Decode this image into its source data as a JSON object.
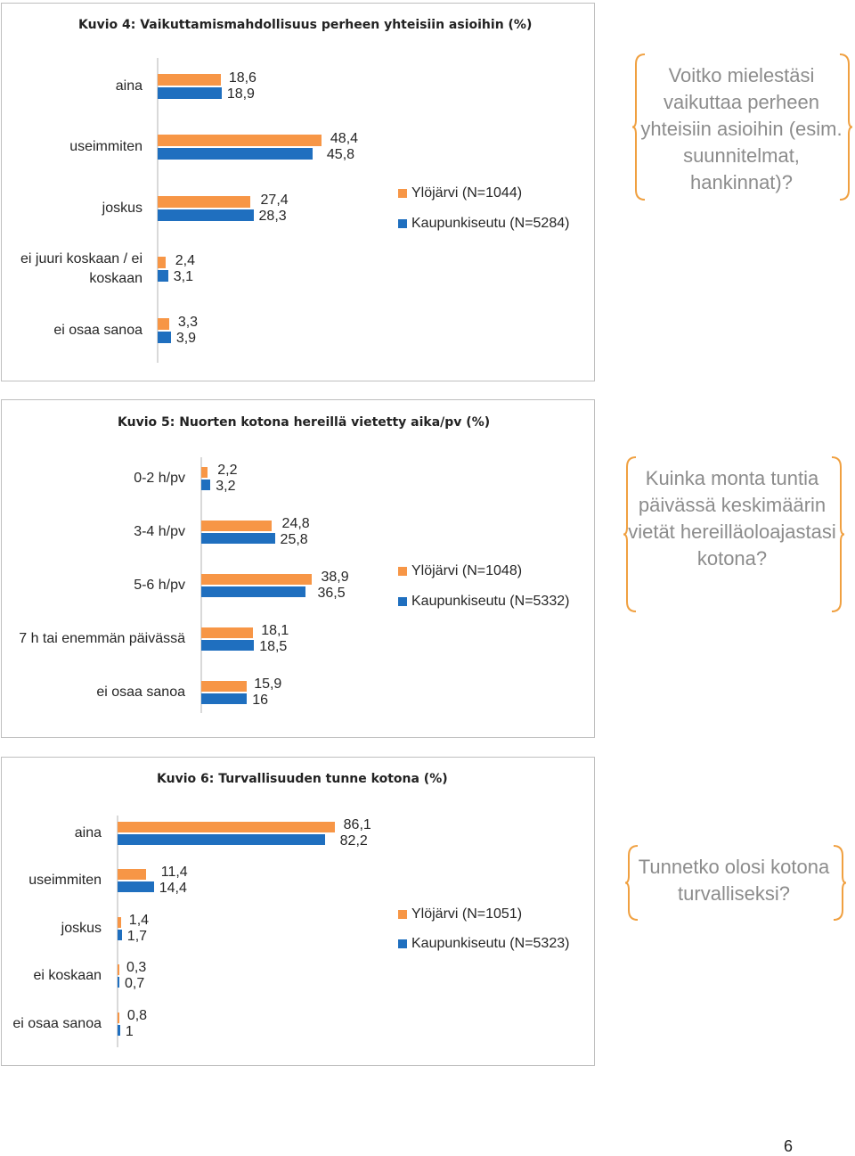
{
  "colors": {
    "ylojarvi": "#f79646",
    "kaupunkiseutu": "#1f6fbf",
    "question": "#8c8c8c",
    "brace": "#f0a040"
  },
  "chart_data": [
    {
      "type": "bar",
      "orientation": "horizontal",
      "title": "Kuvio 4: Vaikuttamismahdollisuus perheen yhteisiin asioihin (%)",
      "categories": [
        "aina",
        "useimmiten",
        "joskus",
        "ei juuri koskaan / ei koskaan",
        "ei osaa sanoa"
      ],
      "series": [
        {
          "name": "Ylöjärvi (N=1044)",
          "values": [
            18.6,
            48.4,
            27.4,
            2.4,
            3.3
          ],
          "labels": [
            "18,6",
            "48,4",
            "27,4",
            "2,4",
            "3,3"
          ]
        },
        {
          "name": "Kaupunkiseutu (N=5284)",
          "values": [
            18.9,
            45.8,
            28.3,
            3.1,
            3.9
          ],
          "labels": [
            "18,9",
            "45,8",
            "28,3",
            "3,1",
            "3,9"
          ]
        }
      ],
      "question": "Voitko mielestäsi vaikuttaa perheen yhteisiin asioihin (esim. suunnitelmat, hankinnat)?"
    },
    {
      "type": "bar",
      "orientation": "horizontal",
      "title": "Kuvio 5: Nuorten kotona hereillä vietetty aika/pv (%)",
      "categories": [
        "0-2 h/pv",
        "3-4 h/pv",
        "5-6 h/pv",
        "7 h tai enemmän päivässä",
        "ei osaa sanoa"
      ],
      "series": [
        {
          "name": "Ylöjärvi (N=1048)",
          "values": [
            2.2,
            24.8,
            38.9,
            18.1,
            15.9
          ],
          "labels": [
            "2,2",
            "24,8",
            "38,9",
            "18,1",
            "15,9"
          ]
        },
        {
          "name": "Kaupunkiseutu (N=5332)",
          "values": [
            3.2,
            25.8,
            36.5,
            18.5,
            16
          ],
          "labels": [
            "3,2",
            "25,8",
            "36,5",
            "18,5",
            "16"
          ]
        }
      ],
      "question": "Kuinka monta tuntia päivässä keskimäärin vietät hereilläoloajastasi kotona?"
    },
    {
      "type": "bar",
      "orientation": "horizontal",
      "title": "Kuvio 6: Turvallisuuden tunne kotona (%)",
      "categories": [
        "aina",
        "useimmiten",
        "joskus",
        "ei koskaan",
        "ei osaa sanoa"
      ],
      "series": [
        {
          "name": "Ylöjärvi (N=1051)",
          "values": [
            86.1,
            11.4,
            1.4,
            0.3,
            0.8
          ],
          "labels": [
            "86,1",
            "11,4",
            "1,4",
            "0,3",
            "0,8"
          ]
        },
        {
          "name": "Kaupunkiseutu (N=5323)",
          "values": [
            82.2,
            14.4,
            1.7,
            0.7,
            1
          ],
          "labels": [
            "82,2",
            "14,4",
            "1,7",
            "0,7",
            "1"
          ]
        }
      ],
      "question": "Tunnetko olosi kotona turvalliseksi?"
    }
  ],
  "page_number": "6"
}
